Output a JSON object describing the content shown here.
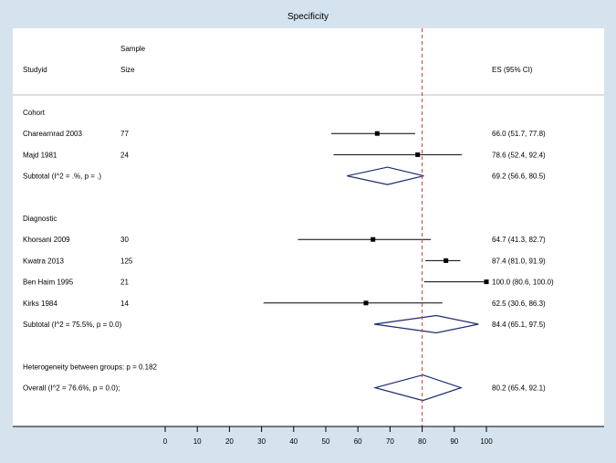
{
  "chart_data": {
    "type": "forest",
    "title": "Specificity",
    "headers": {
      "study": "Studyid",
      "sample_top": "Sample",
      "sample_bottom": "Size",
      "es": "ES (95% CI)"
    },
    "reference_line": 80,
    "xlim": [
      0,
      100
    ],
    "xticks": [
      "0",
      "10",
      "20",
      "30",
      "40",
      "50",
      "60",
      "70",
      "80",
      "90",
      "100"
    ],
    "rows": [
      {
        "kind": "group",
        "label": "Cohort"
      },
      {
        "kind": "study",
        "label": "Charearnrad 2003",
        "n": "77",
        "es": 66.0,
        "lo": 51.7,
        "hi": 77.8,
        "text": "66.0 (51.7, 77.8)"
      },
      {
        "kind": "study",
        "label": "Majd 1981",
        "n": "24",
        "es": 78.6,
        "lo": 52.4,
        "hi": 92.4,
        "text": "78.6 (52.4, 92.4)"
      },
      {
        "kind": "subtotal",
        "label": "Subtotal  (I^2 = .%, p = .)",
        "es": 69.2,
        "lo": 56.6,
        "hi": 80.5,
        "text": "69.2 (56.6, 80.5)"
      },
      {
        "kind": "blank"
      },
      {
        "kind": "group",
        "label": "Diagnostic"
      },
      {
        "kind": "study",
        "label": "Khorsani 2009",
        "n": "30",
        "es": 64.7,
        "lo": 41.3,
        "hi": 82.7,
        "text": "64.7 (41.3, 82.7)"
      },
      {
        "kind": "study",
        "label": "Kwatra 2013",
        "n": "125",
        "es": 87.4,
        "lo": 81.0,
        "hi": 91.9,
        "text": "87.4 (81.0, 91.9)"
      },
      {
        "kind": "study",
        "label": "Ben Haim 1995",
        "n": "21",
        "es": 100.0,
        "lo": 80.6,
        "hi": 100.0,
        "text": "100.0 (80.6, 100.0)"
      },
      {
        "kind": "study",
        "label": "Kirks 1984",
        "n": "14",
        "es": 62.5,
        "lo": 30.6,
        "hi": 86.3,
        "text": "62.5 (30.6, 86.3)"
      },
      {
        "kind": "subtotal",
        "label": "Subtotal  (I^2 = 75.5%, p = 0.0)",
        "es": 84.4,
        "lo": 65.1,
        "hi": 97.5,
        "text": "84.4 (65.1, 97.5)"
      },
      {
        "kind": "blank"
      },
      {
        "kind": "note",
        "label": "Heterogeneity between groups: p = 0.182"
      },
      {
        "kind": "overall",
        "label": "Overall  (I^2 = 76.6%, p = 0.0);",
        "es": 80.2,
        "lo": 65.4,
        "hi": 92.1,
        "text": "80.2 (65.4, 92.1)"
      }
    ]
  }
}
